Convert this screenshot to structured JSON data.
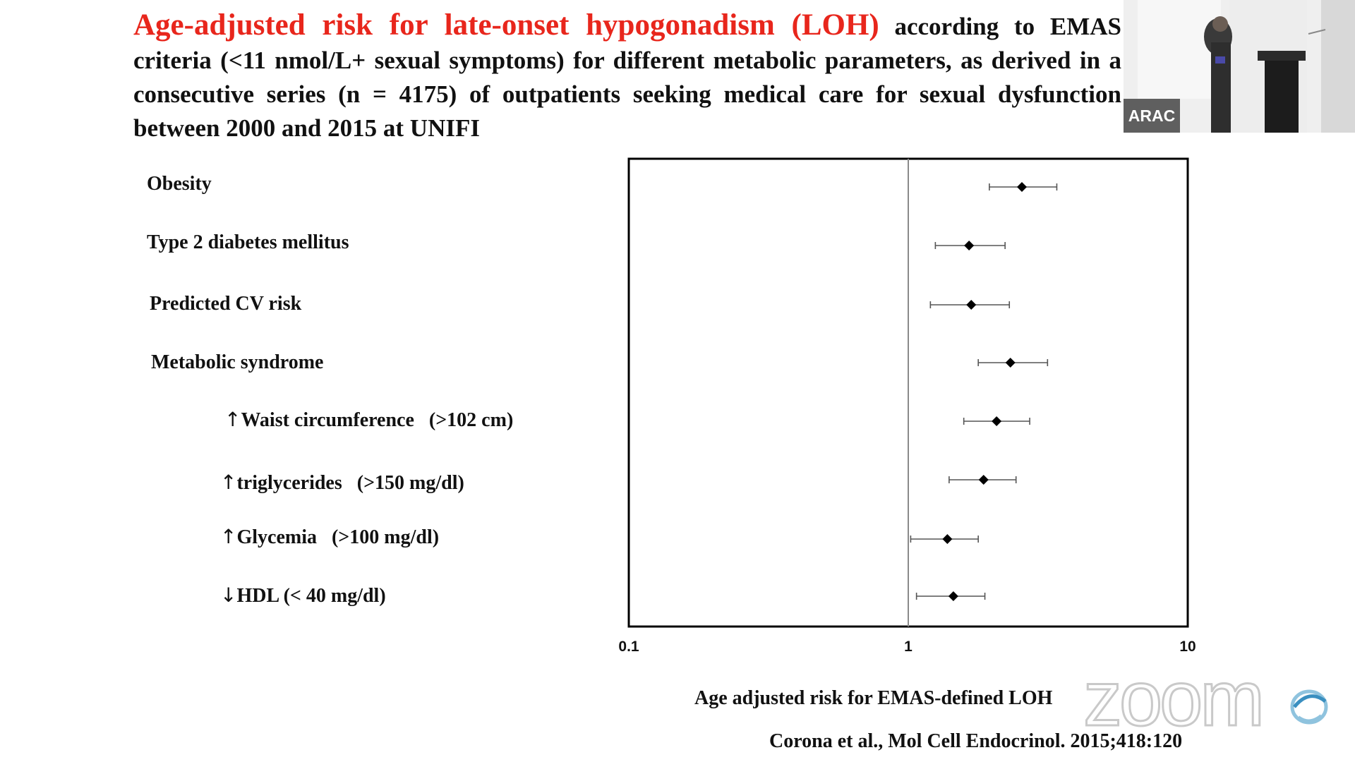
{
  "slide": {
    "title_red": "Age-adjusted risk for late-onset hypogonadism (LOH)",
    "title_rest": " according to EMAS criteria (<11 nmol/L+ sexual symptoms) for different metabolic parameters, as derived in a consecutive series (n = 4175) of outpatients seeking medical care for sexual dysfunction between 2000 and 2015 at UNIFI",
    "citation": "Corona et al., Mol Cell Endocrinol. 2015;418:120",
    "title_color": "#e8261c"
  },
  "rows": [
    {
      "arrow": "",
      "label": "Obesity"
    },
    {
      "arrow": "",
      "label": "Type 2 diabetes mellitus"
    },
    {
      "arrow": "",
      "label": "Predicted CV risk"
    },
    {
      "arrow": "",
      "label": "Metabolic syndrome"
    },
    {
      "arrow": "↑",
      "label": "Waist circumference   (>102 cm)"
    },
    {
      "arrow": "↑",
      "label": "triglycerides   (>150 mg/dl)"
    },
    {
      "arrow": "↑",
      "label": "Glycemia   (>100 mg/dl)"
    },
    {
      "arrow": "↓",
      "label": "HDL (< 40 mg/dl)"
    }
  ],
  "chart_data": {
    "type": "scatter",
    "subtype": "forest-plot",
    "xlabel": "Age adjusted risk for EMAS-defined LOH",
    "xscale": "log",
    "xlim": [
      0.1,
      10
    ],
    "xticks": [
      "0.1",
      "1",
      "10"
    ],
    "reference_line": 1,
    "grid": false,
    "categories": [
      "Obesity",
      "Type 2 diabetes mellitus",
      "Predicted CV risk",
      "Metabolic syndrome",
      "Waist circumference (>102 cm)",
      "triglycerides (>150 mg/dl)",
      "Glycemia (>100 mg/dl)",
      "HDL (< 40 mg/dl)"
    ],
    "estimates": [
      2.55,
      1.65,
      1.68,
      2.32,
      2.07,
      1.86,
      1.38,
      1.45
    ],
    "ci_lower": [
      1.95,
      1.25,
      1.2,
      1.78,
      1.58,
      1.4,
      1.02,
      1.07
    ],
    "ci_upper": [
      3.4,
      2.22,
      2.3,
      3.15,
      2.72,
      2.43,
      1.78,
      1.88
    ]
  },
  "video": {
    "banner": "ARAC"
  },
  "watermark": {
    "text": "zoom"
  },
  "colors": {
    "marker": "#000000",
    "frame": "#000000",
    "reference": "#8a8a8a",
    "ci_line": "#555555"
  }
}
